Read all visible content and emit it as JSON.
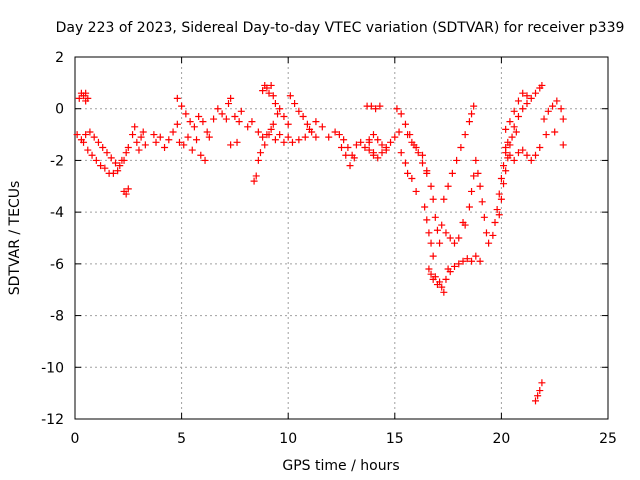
{
  "chart_data": {
    "type": "scatter",
    "title": "Day 223 of 2023, Sidereal Day-to-day VTEC variation (SDTVAR) for receiver p339",
    "xlabel": "GPS time / hours",
    "ylabel": "SDTVAR / TECUs",
    "xlim": [
      0,
      25
    ],
    "ylim": [
      -12,
      2
    ],
    "xticks": [
      0,
      5,
      10,
      15,
      20,
      25
    ],
    "xtick_labels": [
      "0",
      "5",
      "10",
      "15",
      "20",
      "25"
    ],
    "yticks": [
      -12,
      -10,
      -8,
      -6,
      -4,
      -2,
      0,
      2
    ],
    "ytick_labels": [
      "-12",
      "-10",
      "-8",
      "-6",
      "-4",
      "-2",
      "0",
      "2"
    ],
    "grid": true,
    "marker": "+",
    "series": [
      {
        "name": "p339",
        "color": "#ff0000",
        "points": [
          [
            0.1,
            -1.0
          ],
          [
            0.3,
            -1.2
          ],
          [
            0.5,
            -1.0
          ],
          [
            0.7,
            -0.9
          ],
          [
            0.9,
            -1.1
          ],
          [
            1.1,
            -1.3
          ],
          [
            1.3,
            -1.5
          ],
          [
            1.5,
            -1.7
          ],
          [
            1.7,
            -1.9
          ],
          [
            1.9,
            -2.1
          ],
          [
            2.1,
            -2.2
          ],
          [
            2.3,
            -2.0
          ],
          [
            0.2,
            0.4
          ],
          [
            0.3,
            0.6
          ],
          [
            0.4,
            0.5
          ],
          [
            0.5,
            0.3
          ],
          [
            0.5,
            0.6
          ],
          [
            0.6,
            0.4
          ],
          [
            0.4,
            -1.3
          ],
          [
            0.6,
            -1.6
          ],
          [
            0.8,
            -1.8
          ],
          [
            1.0,
            -2.0
          ],
          [
            1.2,
            -2.2
          ],
          [
            1.4,
            -2.3
          ],
          [
            1.6,
            -2.5
          ],
          [
            1.8,
            -2.5
          ],
          [
            2.0,
            -2.4
          ],
          [
            2.2,
            -2.0
          ],
          [
            2.4,
            -1.7
          ],
          [
            2.5,
            -1.5
          ],
          [
            2.3,
            -3.2
          ],
          [
            2.4,
            -3.3
          ],
          [
            2.5,
            -3.1
          ],
          [
            2.7,
            -1.0
          ],
          [
            2.8,
            -0.7
          ],
          [
            2.9,
            -1.3
          ],
          [
            3.0,
            -1.6
          ],
          [
            3.1,
            -1.1
          ],
          [
            3.2,
            -0.9
          ],
          [
            3.3,
            -1.4
          ],
          [
            3.7,
            -1.0
          ],
          [
            3.8,
            -1.3
          ],
          [
            4.0,
            -1.1
          ],
          [
            4.2,
            -1.5
          ],
          [
            4.4,
            -1.2
          ],
          [
            4.6,
            -0.9
          ],
          [
            4.8,
            -0.6
          ],
          [
            4.9,
            -1.3
          ],
          [
            5.1,
            -1.4
          ],
          [
            5.3,
            -1.1
          ],
          [
            5.5,
            -1.6
          ],
          [
            5.7,
            -1.2
          ],
          [
            5.9,
            -1.8
          ],
          [
            6.1,
            -2.0
          ],
          [
            4.8,
            0.4
          ],
          [
            5.0,
            0.1
          ],
          [
            5.2,
            -0.2
          ],
          [
            5.4,
            -0.5
          ],
          [
            5.6,
            -0.7
          ],
          [
            5.8,
            -0.3
          ],
          [
            6.0,
            -0.5
          ],
          [
            6.2,
            -0.9
          ],
          [
            6.3,
            -1.1
          ],
          [
            6.5,
            -0.4
          ],
          [
            6.7,
            0.0
          ],
          [
            6.9,
            -0.2
          ],
          [
            7.1,
            -0.4
          ],
          [
            7.2,
            0.2
          ],
          [
            7.3,
            0.4
          ],
          [
            7.5,
            -0.3
          ],
          [
            7.7,
            -0.5
          ],
          [
            7.8,
            -0.1
          ],
          [
            7.3,
            -1.4
          ],
          [
            7.6,
            -1.3
          ],
          [
            8.1,
            -0.7
          ],
          [
            8.3,
            -0.5
          ],
          [
            8.4,
            -2.8
          ],
          [
            8.5,
            -2.6
          ],
          [
            8.6,
            -0.9
          ],
          [
            8.8,
            -1.1
          ],
          [
            9.0,
            -1.0
          ],
          [
            9.2,
            -0.8
          ],
          [
            9.4,
            -1.2
          ],
          [
            9.6,
            -1.0
          ],
          [
            9.8,
            -1.3
          ],
          [
            10.0,
            -1.1
          ],
          [
            8.8,
            0.7
          ],
          [
            8.9,
            0.9
          ],
          [
            9.0,
            0.8
          ],
          [
            9.1,
            0.6
          ],
          [
            9.2,
            0.9
          ],
          [
            9.3,
            0.5
          ],
          [
            9.4,
            0.2
          ],
          [
            9.5,
            -0.2
          ],
          [
            8.6,
            -2.0
          ],
          [
            8.7,
            -1.7
          ],
          [
            8.9,
            -1.4
          ],
          [
            9.1,
            -1.0
          ],
          [
            9.3,
            -0.6
          ],
          [
            9.6,
            0.0
          ],
          [
            9.8,
            -0.3
          ],
          [
            10.0,
            -0.6
          ],
          [
            10.1,
            0.5
          ],
          [
            10.3,
            0.2
          ],
          [
            10.5,
            -0.1
          ],
          [
            10.7,
            -0.3
          ],
          [
            10.9,
            -0.6
          ],
          [
            11.1,
            -0.9
          ],
          [
            11.3,
            -1.1
          ],
          [
            10.2,
            -1.3
          ],
          [
            10.5,
            -1.2
          ],
          [
            10.8,
            -1.1
          ],
          [
            11.0,
            -0.8
          ],
          [
            11.3,
            -0.5
          ],
          [
            11.6,
            -0.7
          ],
          [
            11.9,
            -1.1
          ],
          [
            12.2,
            -0.9
          ],
          [
            12.4,
            -1.0
          ],
          [
            12.6,
            -1.2
          ],
          [
            12.8,
            -1.5
          ],
          [
            13.0,
            -1.8
          ],
          [
            13.2,
            -1.4
          ],
          [
            13.4,
            -1.3
          ],
          [
            13.6,
            -1.5
          ],
          [
            13.8,
            -1.3
          ],
          [
            14.0,
            -1.7
          ],
          [
            12.5,
            -1.5
          ],
          [
            12.7,
            -1.8
          ],
          [
            12.9,
            -2.2
          ],
          [
            13.1,
            -1.9
          ],
          [
            13.8,
            -1.2
          ],
          [
            14.0,
            -1.0
          ],
          [
            14.2,
            -1.2
          ],
          [
            14.4,
            -1.4
          ],
          [
            14.6,
            -1.6
          ],
          [
            14.8,
            -1.3
          ],
          [
            15.0,
            -1.1
          ],
          [
            15.2,
            -0.9
          ],
          [
            13.8,
            -1.6
          ],
          [
            14.0,
            -1.8
          ],
          [
            14.2,
            -1.9
          ],
          [
            14.4,
            -1.7
          ],
          [
            14.6,
            -1.5
          ],
          [
            13.7,
            0.1
          ],
          [
            13.9,
            0.1
          ],
          [
            14.1,
            0.0
          ],
          [
            14.3,
            0.1
          ],
          [
            15.1,
            0.0
          ],
          [
            15.3,
            -0.2
          ],
          [
            15.5,
            -0.6
          ],
          [
            15.7,
            -1.0
          ],
          [
            15.9,
            -1.4
          ],
          [
            16.1,
            -1.7
          ],
          [
            16.3,
            -2.1
          ],
          [
            16.5,
            -2.4
          ],
          [
            15.3,
            -1.7
          ],
          [
            15.5,
            -2.1
          ],
          [
            15.6,
            -2.5
          ],
          [
            15.8,
            -2.7
          ],
          [
            16.0,
            -3.2
          ],
          [
            15.6,
            -1.0
          ],
          [
            15.8,
            -1.3
          ],
          [
            16.0,
            -1.5
          ],
          [
            16.3,
            -1.8
          ],
          [
            16.4,
            -3.8
          ],
          [
            16.5,
            -4.3
          ],
          [
            16.6,
            -4.8
          ],
          [
            16.7,
            -5.2
          ],
          [
            16.8,
            -5.7
          ],
          [
            16.5,
            -2.5
          ],
          [
            16.7,
            -3.0
          ],
          [
            16.8,
            -3.5
          ],
          [
            16.9,
            -4.2
          ],
          [
            17.0,
            -4.7
          ],
          [
            17.1,
            -5.2
          ],
          [
            16.6,
            -6.2
          ],
          [
            16.7,
            -6.4
          ],
          [
            16.8,
            -6.6
          ],
          [
            16.9,
            -6.5
          ],
          [
            17.0,
            -6.8
          ],
          [
            17.1,
            -6.7
          ],
          [
            17.2,
            -6.9
          ],
          [
            17.3,
            -7.1
          ],
          [
            17.4,
            -6.6
          ],
          [
            17.5,
            -6.2
          ],
          [
            17.2,
            -4.5
          ],
          [
            17.4,
            -4.8
          ],
          [
            17.6,
            -5.0
          ],
          [
            17.8,
            -5.2
          ],
          [
            18.0,
            -5.0
          ],
          [
            18.2,
            -4.4
          ],
          [
            17.6,
            -6.3
          ],
          [
            17.8,
            -6.1
          ],
          [
            18.0,
            -6.0
          ],
          [
            18.2,
            -5.9
          ],
          [
            18.4,
            -5.8
          ],
          [
            18.6,
            -5.9
          ],
          [
            18.8,
            -5.7
          ],
          [
            19.0,
            -5.9
          ],
          [
            17.3,
            -3.5
          ],
          [
            17.5,
            -3.0
          ],
          [
            17.7,
            -2.5
          ],
          [
            17.9,
            -2.0
          ],
          [
            18.1,
            -1.5
          ],
          [
            18.3,
            -1.0
          ],
          [
            18.5,
            -0.5
          ],
          [
            18.6,
            -0.2
          ],
          [
            18.7,
            0.1
          ],
          [
            18.3,
            -4.5
          ],
          [
            18.5,
            -3.8
          ],
          [
            18.6,
            -3.2
          ],
          [
            18.7,
            -2.6
          ],
          [
            18.8,
            -2.0
          ],
          [
            18.9,
            -2.5
          ],
          [
            19.0,
            -3.0
          ],
          [
            19.1,
            -3.6
          ],
          [
            19.2,
            -4.2
          ],
          [
            19.3,
            -4.8
          ],
          [
            19.4,
            -5.2
          ],
          [
            19.6,
            -4.9
          ],
          [
            19.7,
            -4.4
          ],
          [
            19.8,
            -3.9
          ],
          [
            19.9,
            -3.3
          ],
          [
            20.0,
            -2.7
          ],
          [
            20.1,
            -2.2
          ],
          [
            20.2,
            -1.7
          ],
          [
            20.3,
            -1.3
          ],
          [
            20.5,
            -1.1
          ],
          [
            20.7,
            -0.9
          ],
          [
            19.9,
            -4.1
          ],
          [
            20.0,
            -3.5
          ],
          [
            20.1,
            -2.9
          ],
          [
            20.2,
            -2.4
          ],
          [
            20.3,
            -1.9
          ],
          [
            20.4,
            -1.4
          ],
          [
            20.2,
            -1.5
          ],
          [
            20.4,
            -1.8
          ],
          [
            20.6,
            -2.0
          ],
          [
            20.8,
            -1.7
          ],
          [
            21.0,
            -1.6
          ],
          [
            21.2,
            -1.8
          ],
          [
            21.4,
            -2.0
          ],
          [
            21.6,
            -1.8
          ],
          [
            21.8,
            -1.5
          ],
          [
            20.6,
            -0.7
          ],
          [
            20.8,
            -0.3
          ],
          [
            21.0,
            0.0
          ],
          [
            21.2,
            0.2
          ],
          [
            21.4,
            0.4
          ],
          [
            21.6,
            0.6
          ],
          [
            21.8,
            0.8
          ],
          [
            21.9,
            0.9
          ],
          [
            20.2,
            -0.8
          ],
          [
            20.4,
            -0.5
          ],
          [
            20.6,
            -0.1
          ],
          [
            20.8,
            0.3
          ],
          [
            21.0,
            0.6
          ],
          [
            21.2,
            0.5
          ],
          [
            22.0,
            -0.4
          ],
          [
            22.2,
            -0.1
          ],
          [
            22.4,
            0.1
          ],
          [
            22.6,
            0.3
          ],
          [
            22.8,
            0.0
          ],
          [
            22.9,
            -0.4
          ],
          [
            22.1,
            -1.0
          ],
          [
            22.5,
            -0.9
          ],
          [
            22.9,
            -1.4
          ],
          [
            21.6,
            -11.3
          ],
          [
            21.7,
            -11.1
          ],
          [
            21.8,
            -10.9
          ],
          [
            21.9,
            -10.6
          ]
        ]
      }
    ]
  }
}
